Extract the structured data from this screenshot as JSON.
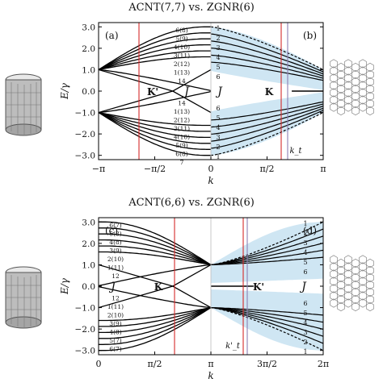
{
  "figure": {
    "top": {
      "title": "ACNT(7,7) vs. ZGNR(6)",
      "left_label": "(a)",
      "right_label": "(b)",
      "ylabel": "E/γ",
      "xlabel": "k",
      "xticks": [
        "−π",
        "−π/2",
        "0",
        "π/2",
        "π"
      ],
      "yticks": [
        "3.0",
        "2.0",
        "1.0",
        "0.0",
        "−1.0",
        "−2.0",
        "−3.0"
      ],
      "valley_left": "K'",
      "valley_right": "K",
      "j_labels": [
        "J",
        "J"
      ],
      "kt_label": "k_t",
      "cnt_band_labels_upper": [
        "6(8)",
        "5(9)",
        "4(10)",
        "3(11)",
        "2(12)",
        "1(13)",
        "14"
      ],
      "cnt_band_labels_lower": [
        "14",
        "1(13)",
        "2(12)",
        "3(11)",
        "4(10)",
        "5(9)",
        "6(8)",
        "7"
      ],
      "gnr_band_labels_upper": [
        "1",
        "2",
        "3",
        "4",
        "5",
        "6"
      ],
      "gnr_band_labels_lower": [
        "6",
        "5",
        "4",
        "3",
        "2",
        "1"
      ]
    },
    "bottom": {
      "title": "ACNT(6,6) vs. ZGNR(6)",
      "left_label": "(c)",
      "right_label": "(d)",
      "ylabel": "E/γ",
      "xlabel": "k",
      "xticks": [
        "0",
        "π/2",
        "π",
        "3π/2",
        "2π"
      ],
      "yticks": [
        "3.0",
        "2.0",
        "1.0",
        "0.0",
        "−1.0",
        "−2.0",
        "−3.0"
      ],
      "valley_left": "K",
      "valley_right": "K'",
      "j_labels": [
        "J",
        "J"
      ],
      "kt_label": "k'_t",
      "cnt_band_labels_upper": [
        "6(7)",
        "5(8)",
        "4(8)",
        "3(9)",
        "2(10)",
        "1(11)",
        "12"
      ],
      "cnt_band_labels_lower": [
        "12",
        "1(11)",
        "2(10)",
        "3(9)",
        "4(8)",
        "5(7)",
        "6(7)"
      ],
      "gnr_band_labels_upper": [
        "1",
        "2",
        "3",
        "4",
        "5",
        "6"
      ],
      "gnr_band_labels_lower": [
        "6",
        "5",
        "4",
        "3",
        "2",
        "1"
      ]
    },
    "colors": {
      "band": "#000000",
      "shade": "#cfe6f3",
      "marker": "#d62a2a",
      "marker_alt": "#8d7fb3",
      "frame": "#000000"
    }
  }
}
